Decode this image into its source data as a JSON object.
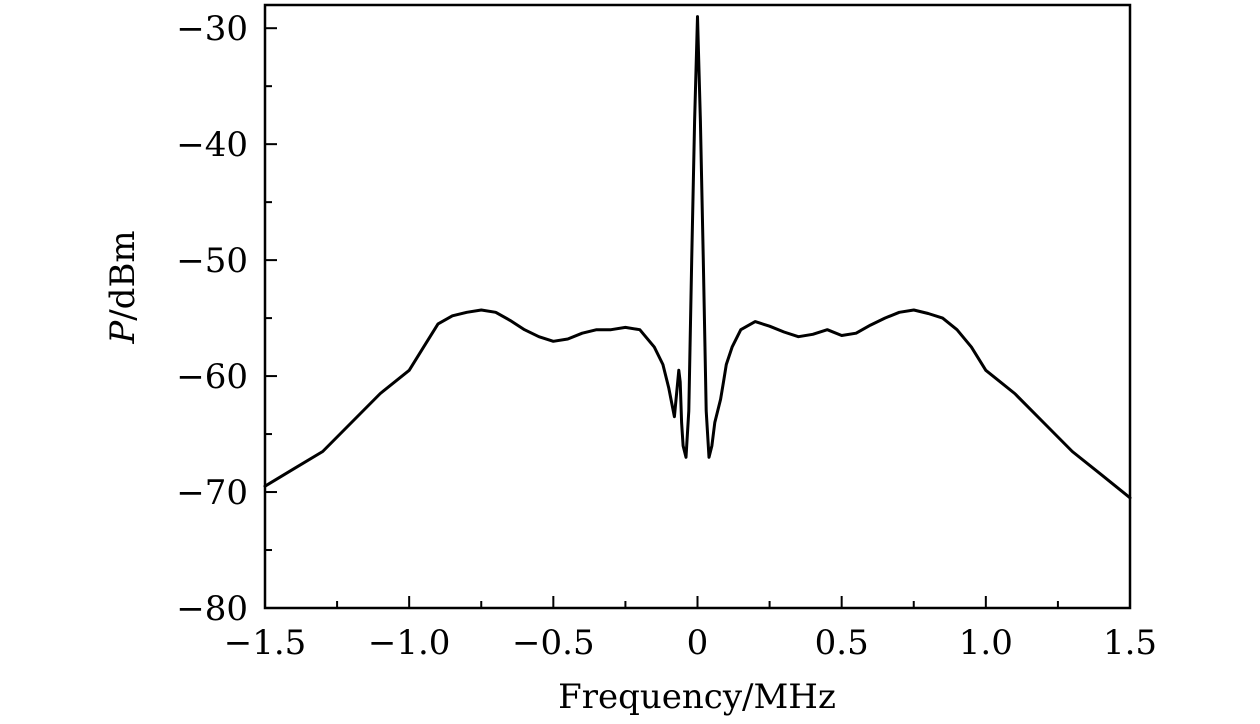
{
  "chart_data": {
    "type": "line",
    "title": "",
    "xlabel": "Frequency/MHz",
    "ylabel_italic": "P",
    "ylabel_rest": "/dBm",
    "xlim": [
      -1.5,
      1.5
    ],
    "ylim": [
      -80,
      -28
    ],
    "x_ticks": [
      -1.5,
      -1.0,
      -0.5,
      0,
      0.5,
      1.0,
      1.5
    ],
    "x_tick_labels": [
      "−1.5",
      "−1.0",
      "−0.5",
      "0",
      "0.5",
      "1.0",
      "1.5"
    ],
    "y_ticks": [
      -80,
      -70,
      -60,
      -50,
      -40,
      -30
    ],
    "y_tick_labels": [
      "−80",
      "−70",
      "−60",
      "−50",
      "−40",
      "−30"
    ],
    "grid": false,
    "series": [
      {
        "color": "#000000",
        "x": [
          -1.5,
          -1.4,
          -1.3,
          -1.2,
          -1.1,
          -1.0,
          -0.95,
          -0.9,
          -0.85,
          -0.8,
          -0.75,
          -0.7,
          -0.65,
          -0.6,
          -0.55,
          -0.5,
          -0.45,
          -0.4,
          -0.35,
          -0.3,
          -0.25,
          -0.2,
          -0.15,
          -0.12,
          -0.1,
          -0.08,
          -0.065,
          -0.06,
          -0.055,
          -0.05,
          -0.04,
          -0.03,
          -0.02,
          -0.01,
          0,
          0.01,
          0.02,
          0.03,
          0.04,
          0.05,
          0.06,
          0.07,
          0.08,
          0.09,
          0.1,
          0.12,
          0.15,
          0.2,
          0.25,
          0.3,
          0.35,
          0.4,
          0.45,
          0.5,
          0.55,
          0.6,
          0.65,
          0.7,
          0.75,
          0.8,
          0.85,
          0.9,
          0.95,
          1.0,
          1.1,
          1.2,
          1.3,
          1.4,
          1.5
        ],
        "y": [
          -69.5,
          -68.0,
          -66.5,
          -64.0,
          -61.5,
          -59.5,
          -57.5,
          -55.5,
          -54.8,
          -54.5,
          -54.3,
          -54.5,
          -55.2,
          -56.0,
          -56.6,
          -57.0,
          -56.8,
          -56.3,
          -56.0,
          -56.0,
          -55.8,
          -56.0,
          -57.5,
          -59.0,
          -61.0,
          -63.5,
          -59.5,
          -60.5,
          -64.0,
          -66.0,
          -67.0,
          -63.0,
          -50.0,
          -38.0,
          -29.0,
          -38.0,
          -50.0,
          -63.0,
          -67.0,
          -66.0,
          -64.0,
          -63.0,
          -62.0,
          -60.5,
          -59.0,
          -57.5,
          -56.0,
          -55.3,
          -55.7,
          -56.2,
          -56.6,
          -56.4,
          -56.0,
          -56.5,
          -56.3,
          -55.6,
          -55.0,
          -54.5,
          -54.3,
          -54.6,
          -55.0,
          -56.0,
          -57.5,
          -59.5,
          -61.5,
          -64.0,
          -66.5,
          -68.5,
          -70.5
        ]
      }
    ]
  }
}
